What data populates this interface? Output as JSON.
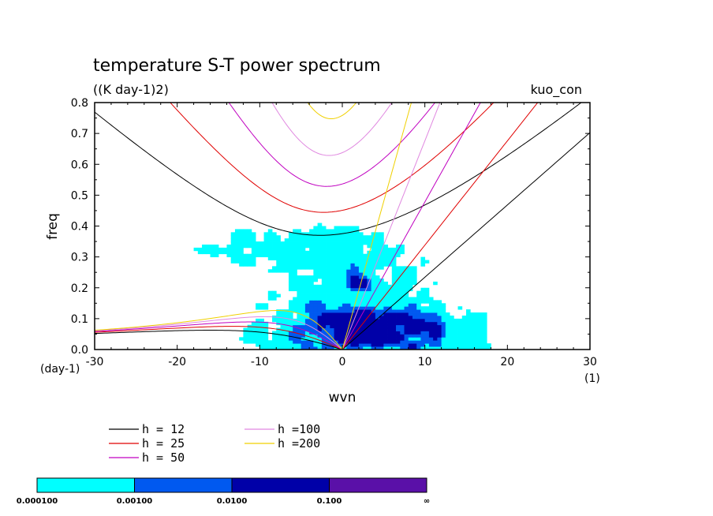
{
  "chart_data": {
    "type": "contour",
    "title": "temperature S-T power spectrum",
    "subtitle": "((K day-1)2)",
    "annotation": "kuo_con",
    "xlabel": "wvn",
    "ylabel": "freq",
    "x_unit_label": "(1)",
    "y_unit_label": "(day-1)",
    "xlim": [
      -30,
      30
    ],
    "ylim": [
      0,
      0.8
    ],
    "xticks": [
      -30,
      -20,
      -10,
      0,
      10,
      20,
      30
    ],
    "yticks": [
      0.0,
      0.1,
      0.2,
      0.3,
      0.4,
      0.5,
      0.6,
      0.7,
      0.8
    ],
    "xtick_labels": [
      "-30",
      "-20",
      "-10",
      "0",
      "10",
      "20",
      "30"
    ],
    "ytick_labels": [
      "0.0",
      "0.1",
      "0.2",
      "0.3",
      "0.4",
      "0.5",
      "0.6",
      "0.7",
      "0.8"
    ],
    "contour_levels": [
      "0.000100",
      "0.00100",
      "0.0100",
      "0.100",
      "∞"
    ],
    "contour_colors": [
      "#00ffff",
      "#0059f0",
      "#0000a8",
      "#5a10a8"
    ],
    "dispersion_curves": [
      {
        "label": "h = 12",
        "h": 12,
        "color": "#000000"
      },
      {
        "label": "h = 25",
        "h": 25,
        "color": "#e00000"
      },
      {
        "label": "h = 50",
        "h": 50,
        "color": "#c000c0"
      },
      {
        "label": "h =100",
        "h": 100,
        "color": "#e088e0"
      },
      {
        "label": "h =200",
        "h": 200,
        "color": "#f0d000"
      }
    ],
    "grid": false,
    "legend_position": "below plot"
  }
}
